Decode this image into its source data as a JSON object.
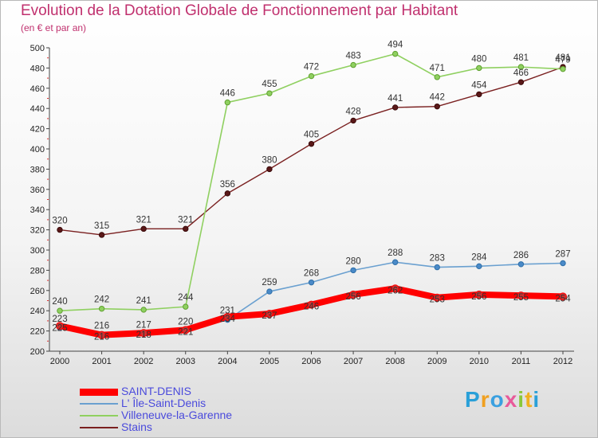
{
  "colors": {
    "title": "#c0306e",
    "saint_denis": "#ff0000",
    "ile_saint_denis": "#6aa0d0",
    "villeneuve": "#8fd060",
    "stains": "#7a2020"
  },
  "logo": {
    "text": "Proxiti"
  },
  "chart_data": {
    "type": "line",
    "title": "Evolution de la Dotation Globale de Fonctionnement par Habitant",
    "subtitle": "(en € et par an)",
    "xlabel": "",
    "ylabel": "",
    "ylim": [
      200,
      500
    ],
    "yticks": [
      200,
      220,
      240,
      260,
      280,
      300,
      320,
      340,
      360,
      380,
      400,
      420,
      440,
      460,
      480,
      500
    ],
    "grid": false,
    "legend": "bottom-left",
    "x": [
      "2000",
      "2001",
      "2002",
      "2003",
      "2004",
      "2005",
      "2006",
      "2007",
      "2008",
      "2009",
      "2010",
      "2011",
      "2012"
    ],
    "series": [
      {
        "name": "SAINT-DENIS",
        "values": [
          225,
          216,
          218,
          221,
          234,
          237,
          246,
          256,
          262,
          253,
          256,
          255,
          254
        ],
        "labels": [
          "225",
          "216",
          "218",
          "221",
          "234",
          "237",
          "246",
          "256",
          "262",
          "253",
          "256",
          "255",
          "254"
        ]
      },
      {
        "name": "L' Île-Saint-Denis",
        "values": [
          223,
          216,
          217,
          220,
          231,
          259,
          268,
          280,
          288,
          283,
          284,
          286,
          287
        ],
        "labels": [
          "223",
          "216",
          "217",
          "220",
          "231",
          "259",
          "268",
          "280",
          "288",
          "283",
          "284",
          "286",
          "287"
        ]
      },
      {
        "name": "Villeneuve-la-Garenne",
        "values": [
          240,
          242,
          241,
          244,
          446,
          455,
          472,
          483,
          494,
          471,
          480,
          481,
          479
        ],
        "labels": [
          "240",
          "242",
          "241",
          "244",
          "446",
          "455",
          "472",
          "483",
          "494",
          "471",
          "480",
          "481",
          "479"
        ]
      },
      {
        "name": "Stains",
        "values": [
          320,
          315,
          321,
          321,
          356,
          380,
          405,
          428,
          441,
          442,
          454,
          466,
          481
        ],
        "labels": [
          "320",
          "315",
          "321",
          "321",
          "356",
          "380",
          "405",
          "428",
          "441",
          "442",
          "454",
          "466",
          "481"
        ]
      }
    ]
  }
}
